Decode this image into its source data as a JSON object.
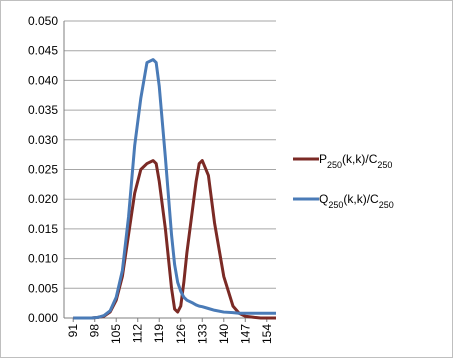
{
  "chart_data": {
    "type": "line",
    "title": "",
    "xlabel": "",
    "ylabel": "",
    "ylim": [
      0,
      0.05
    ],
    "y_ticks": [
      "0.000",
      "0.005",
      "0.010",
      "0.015",
      "0.020",
      "0.025",
      "0.030",
      "0.035",
      "0.040",
      "0.045",
      "0.050"
    ],
    "x_ticks": [
      "91",
      "98",
      "105",
      "112",
      "119",
      "126",
      "133",
      "140",
      "147",
      "154"
    ],
    "grid": "horizontal",
    "legend_position": "right",
    "x": [
      91,
      93,
      95,
      97,
      99,
      101,
      103,
      105,
      107,
      109,
      111,
      113,
      115,
      117,
      118,
      119,
      121,
      123,
      124,
      125,
      126,
      127,
      128,
      130,
      131,
      132,
      133,
      135,
      137,
      140,
      143,
      145,
      147,
      150,
      152,
      154,
      157
    ],
    "series": [
      {
        "name_main": "P",
        "name_sub": "250",
        "name_mid": "(k,k)/C",
        "name_sub2": "250",
        "color": "#7b2a25",
        "values": [
          0,
          0,
          0,
          0,
          0.0001,
          0.0003,
          0.001,
          0.003,
          0.007,
          0.014,
          0.021,
          0.025,
          0.026,
          0.0265,
          0.026,
          0.023,
          0.015,
          0.005,
          0.0015,
          0.001,
          0.002,
          0.006,
          0.011,
          0.019,
          0.023,
          0.026,
          0.0265,
          0.024,
          0.016,
          0.007,
          0.002,
          0.0008,
          0.0003,
          0.0001,
          0,
          0,
          0
        ]
      },
      {
        "name_main": "Q",
        "name_sub": "250",
        "name_mid": "(k,k)/C",
        "name_sub2": "250",
        "color": "#4a7bb7",
        "values": [
          0,
          0,
          0,
          0,
          0.0001,
          0.0004,
          0.0012,
          0.0035,
          0.008,
          0.017,
          0.029,
          0.037,
          0.043,
          0.0435,
          0.043,
          0.039,
          0.027,
          0.014,
          0.009,
          0.006,
          0.0045,
          0.0035,
          0.003,
          0.0025,
          0.0022,
          0.002,
          0.0019,
          0.0016,
          0.0013,
          0.001,
          0.0009,
          0.0008,
          0.0008,
          0.0008,
          0.0008,
          0.0008,
          0.0008
        ]
      }
    ]
  }
}
